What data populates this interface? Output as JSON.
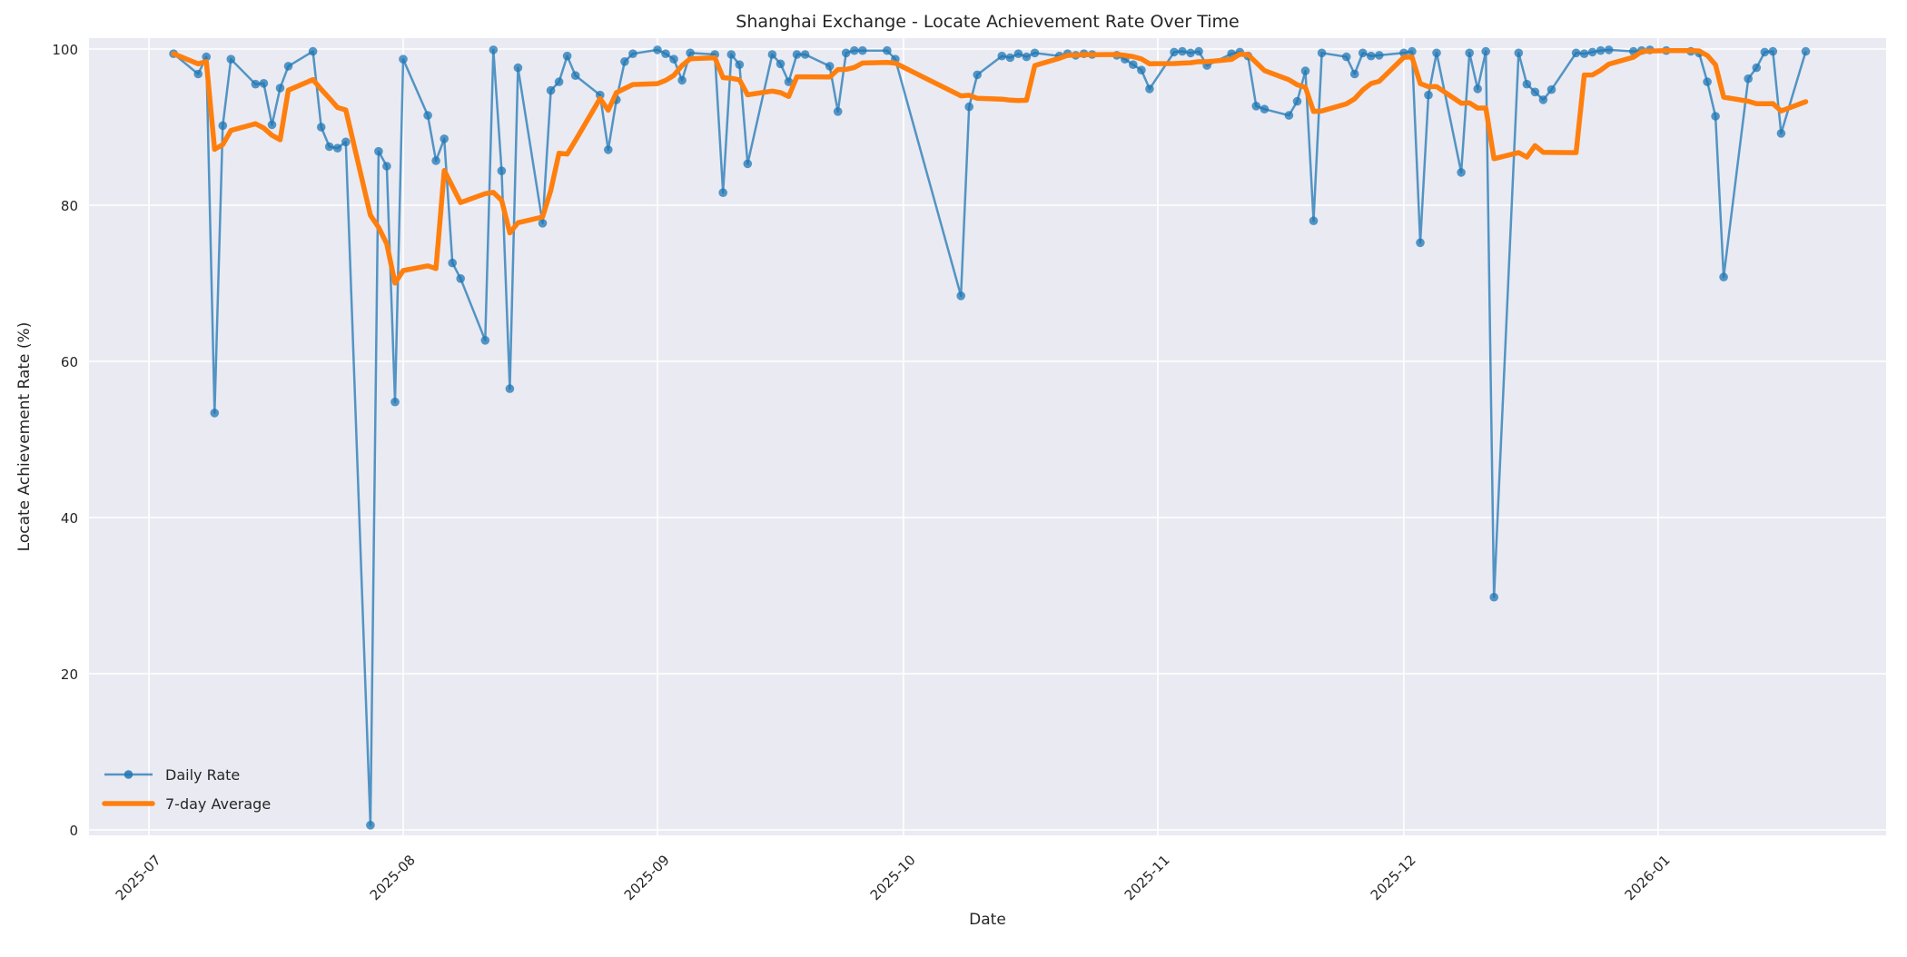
{
  "chart_data": {
    "type": "line",
    "title": "Shanghai Exchange - Locate Achievement Rate Over Time",
    "xlabel": "Date",
    "ylabel": "Locate Achievement Rate (%)",
    "ylim": [
      -0.7,
      101.4
    ],
    "y_ticks": [
      0,
      20,
      40,
      60,
      80,
      100
    ],
    "x_ticks": [
      {
        "label": "2025-07",
        "date": "2025-07-01"
      },
      {
        "label": "2025-08",
        "date": "2025-08-01"
      },
      {
        "label": "2025-09",
        "date": "2025-09-01"
      },
      {
        "label": "2025-10",
        "date": "2025-10-01"
      },
      {
        "label": "2025-11",
        "date": "2025-11-01"
      },
      {
        "label": "2025-12",
        "date": "2025-12-01"
      },
      {
        "label": "2026-01",
        "date": "2026-01-01"
      }
    ],
    "grid": true,
    "legend_position": "lower left",
    "colors": {
      "panel_background": "#eaeaf2",
      "grid": "#ffffff",
      "text": "#262626",
      "daily": "#1f77b4",
      "average": "#ff7f0e"
    },
    "legend": [
      {
        "label": "Daily Rate",
        "swatch": "line-with-dot",
        "color": "#1f77b4"
      },
      {
        "label": "7-day Average",
        "swatch": "thick-line",
        "color": "#ff7f0e"
      }
    ],
    "series": [
      {
        "name": "Daily Rate",
        "color": "#1f77b4",
        "opacity": 0.75,
        "line_width": 2.5,
        "marker": "circle",
        "marker_radius": 4.8,
        "dates": [
          "2025-07-04",
          "2025-07-07",
          "2025-07-08",
          "2025-07-09",
          "2025-07-10",
          "2025-07-11",
          "2025-07-14",
          "2025-07-15",
          "2025-07-16",
          "2025-07-17",
          "2025-07-18",
          "2025-07-21",
          "2025-07-22",
          "2025-07-23",
          "2025-07-24",
          "2025-07-25",
          "2025-07-28",
          "2025-07-29",
          "2025-07-30",
          "2025-07-31",
          "2025-08-01",
          "2025-08-04",
          "2025-08-05",
          "2025-08-06",
          "2025-08-07",
          "2025-08-08",
          "2025-08-11",
          "2025-08-12",
          "2025-08-13",
          "2025-08-14",
          "2025-08-15",
          "2025-08-18",
          "2025-08-19",
          "2025-08-20",
          "2025-08-21",
          "2025-08-22",
          "2025-08-25",
          "2025-08-26",
          "2025-08-27",
          "2025-08-28",
          "2025-08-29",
          "2025-09-01",
          "2025-09-02",
          "2025-09-03",
          "2025-09-04",
          "2025-09-05",
          "2025-09-08",
          "2025-09-09",
          "2025-09-10",
          "2025-09-11",
          "2025-09-12",
          "2025-09-15",
          "2025-09-16",
          "2025-09-17",
          "2025-09-18",
          "2025-09-19",
          "2025-09-22",
          "2025-09-23",
          "2025-09-24",
          "2025-09-25",
          "2025-09-26",
          "2025-09-29",
          "2025-09-30",
          "2025-10-08",
          "2025-10-09",
          "2025-10-10",
          "2025-10-13",
          "2025-10-14",
          "2025-10-15",
          "2025-10-16",
          "2025-10-17",
          "2025-10-20",
          "2025-10-21",
          "2025-10-22",
          "2025-10-23",
          "2025-10-24",
          "2025-10-27",
          "2025-10-28",
          "2025-10-29",
          "2025-10-30",
          "2025-10-31",
          "2025-11-03",
          "2025-11-04",
          "2025-11-05",
          "2025-11-06",
          "2025-11-07",
          "2025-11-10",
          "2025-11-11",
          "2025-11-12",
          "2025-11-13",
          "2025-11-14",
          "2025-11-17",
          "2025-11-18",
          "2025-11-19",
          "2025-11-20",
          "2025-11-21",
          "2025-11-24",
          "2025-11-25",
          "2025-11-26",
          "2025-11-27",
          "2025-11-28",
          "2025-12-01",
          "2025-12-02",
          "2025-12-03",
          "2025-12-04",
          "2025-12-05",
          "2025-12-08",
          "2025-12-09",
          "2025-12-10",
          "2025-12-11",
          "2025-12-12",
          "2025-12-15",
          "2025-12-16",
          "2025-12-17",
          "2025-12-18",
          "2025-12-19",
          "2025-12-22",
          "2025-12-23",
          "2025-12-24",
          "2025-12-25",
          "2025-12-26",
          "2025-12-29",
          "2025-12-30",
          "2025-12-31",
          "2026-01-02",
          "2026-01-05",
          "2026-01-06",
          "2026-01-07",
          "2026-01-08",
          "2026-01-09",
          "2026-01-12",
          "2026-01-13",
          "2026-01-14",
          "2026-01-15",
          "2026-01-16",
          "2026-01-19"
        ],
        "values": [
          99.4,
          96.8,
          99.0,
          53.4,
          90.2,
          98.7,
          95.5,
          95.6,
          90.3,
          95.0,
          97.8,
          99.7,
          90.0,
          87.5,
          87.3,
          88.1,
          0.6,
          86.9,
          85.0,
          54.8,
          98.7,
          91.5,
          85.7,
          88.5,
          72.6,
          70.6,
          62.7,
          99.9,
          84.4,
          56.5,
          97.6,
          77.7,
          94.7,
          95.8,
          99.1,
          96.6,
          94.1,
          87.1,
          93.5,
          98.4,
          99.4,
          99.9,
          99.4,
          98.7,
          96.0,
          99.5,
          99.3,
          81.6,
          99.3,
          98.0,
          85.3,
          99.3,
          98.1,
          95.8,
          99.3,
          99.3,
          97.8,
          92.0,
          99.5,
          99.8,
          99.8,
          99.8,
          98.7,
          68.4,
          92.6,
          96.7,
          99.1,
          98.9,
          99.4,
          99.0,
          99.5,
          99.1,
          99.4,
          99.2,
          99.4,
          99.3,
          99.2,
          98.7,
          98.0,
          97.3,
          94.9,
          99.6,
          99.7,
          99.5,
          99.7,
          97.9,
          99.4,
          99.6,
          99.1,
          92.7,
          92.3,
          91.5,
          93.3,
          97.2,
          78.0,
          99.5,
          99.0,
          96.8,
          99.5,
          99.1,
          99.2,
          99.5,
          99.7,
          75.2,
          94.1,
          99.5,
          84.2,
          99.5,
          94.9,
          99.7,
          29.8,
          99.5,
          95.5,
          94.5,
          93.5,
          94.8,
          99.5,
          99.4,
          99.6,
          99.8,
          99.9,
          99.7,
          99.8,
          99.9,
          99.8,
          99.7,
          99.5,
          95.8,
          91.4,
          70.8,
          96.2,
          97.6,
          99.6,
          99.7,
          89.2,
          99.7
        ]
      },
      {
        "name": "7-day Average",
        "color": "#ff7f0e",
        "opacity": 1.0,
        "line_width": 5.5,
        "marker": "none",
        "derivation": "rolling mean of Daily Rate over trailing 7 points, min_periods 1"
      }
    ]
  }
}
